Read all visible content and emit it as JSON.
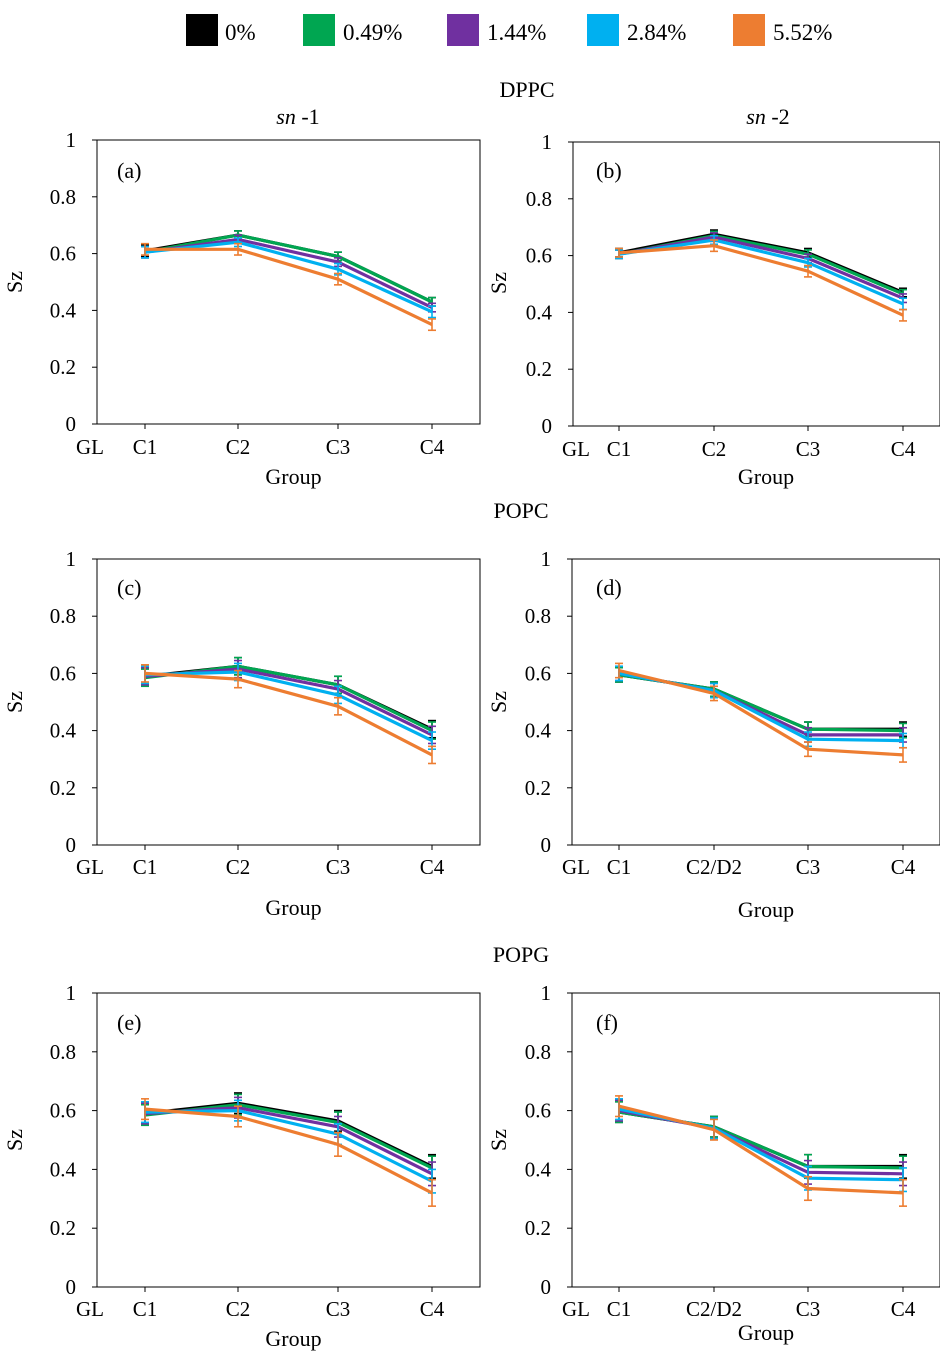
{
  "legend": [
    {
      "label": "0%",
      "color": "#000000"
    },
    {
      "label": "0.49%",
      "color": "#00a651"
    },
    {
      "label": "1.44%",
      "color": "#7030a0"
    },
    {
      "label": "2.84%",
      "color": "#00b0f0"
    },
    {
      "label": "5.52%",
      "color": "#ed7d31"
    }
  ],
  "sections": [
    "DPPC",
    "POPC",
    "POPG"
  ],
  "columns": [
    "sn-1",
    "sn-2"
  ],
  "chart_data": [
    {
      "type": "line",
      "label": "(a)",
      "section": "DPPC",
      "column": "sn-1",
      "categories": [
        "C1",
        "C2",
        "C3",
        "C4"
      ],
      "extra_tick": "GL",
      "ylabel": "Sz",
      "xlabel": "Group",
      "ylim": [
        0,
        1
      ],
      "yticks": [
        "0",
        "0.2",
        "0.4",
        "0.6",
        "0.8",
        "1"
      ],
      "series": [
        {
          "name": "0%",
          "values": [
            0.61,
            0.665,
            0.59,
            0.43
          ],
          "error": [
            0.02,
            0.015,
            0.015,
            0.015
          ]
        },
        {
          "name": "0.49%",
          "values": [
            0.605,
            0.665,
            0.59,
            0.43
          ],
          "error": [
            0.02,
            0.015,
            0.015,
            0.015
          ]
        },
        {
          "name": "1.44%",
          "values": [
            0.605,
            0.65,
            0.57,
            0.41
          ],
          "error": [
            0.02,
            0.015,
            0.015,
            0.015
          ]
        },
        {
          "name": "2.84%",
          "values": [
            0.605,
            0.64,
            0.545,
            0.395
          ],
          "error": [
            0.02,
            0.015,
            0.02,
            0.02
          ]
        },
        {
          "name": "5.52%",
          "values": [
            0.615,
            0.615,
            0.51,
            0.35
          ],
          "error": [
            0.02,
            0.02,
            0.02,
            0.02
          ]
        }
      ]
    },
    {
      "type": "line",
      "label": "(b)",
      "section": "DPPC",
      "column": "sn-2",
      "categories": [
        "C1",
        "C2",
        "C3",
        "C4"
      ],
      "extra_tick": "GL",
      "ylabel": "Sz",
      "xlabel": "Group",
      "ylim": [
        0,
        1
      ],
      "yticks": [
        "0",
        "0.2",
        "0.4",
        "0.6",
        "0.8",
        "1"
      ],
      "series": [
        {
          "name": "0%",
          "values": [
            0.61,
            0.675,
            0.61,
            0.47
          ],
          "error": [
            0.015,
            0.015,
            0.015,
            0.015
          ]
        },
        {
          "name": "0.49%",
          "values": [
            0.605,
            0.67,
            0.605,
            0.465
          ],
          "error": [
            0.015,
            0.015,
            0.015,
            0.015
          ]
        },
        {
          "name": "1.44%",
          "values": [
            0.605,
            0.665,
            0.59,
            0.45
          ],
          "error": [
            0.015,
            0.015,
            0.015,
            0.015
          ]
        },
        {
          "name": "2.84%",
          "values": [
            0.605,
            0.655,
            0.575,
            0.43
          ],
          "error": [
            0.015,
            0.015,
            0.015,
            0.02
          ]
        },
        {
          "name": "5.52%",
          "values": [
            0.61,
            0.635,
            0.545,
            0.39
          ],
          "error": [
            0.015,
            0.02,
            0.02,
            0.02
          ]
        }
      ]
    },
    {
      "type": "line",
      "label": "(c)",
      "section": "POPC",
      "column": "sn-1",
      "categories": [
        "C1",
        "C2",
        "C3",
        "C4"
      ],
      "extra_tick": "GL",
      "ylabel": "Sz",
      "xlabel": "Group",
      "ylim": [
        0,
        1
      ],
      "yticks": [
        "0",
        "0.2",
        "0.4",
        "0.6",
        "0.8",
        "1"
      ],
      "series": [
        {
          "name": "0%",
          "values": [
            0.59,
            0.625,
            0.56,
            0.405
          ],
          "error": [
            0.03,
            0.03,
            0.03,
            0.03
          ]
        },
        {
          "name": "0.49%",
          "values": [
            0.585,
            0.625,
            0.56,
            0.4
          ],
          "error": [
            0.03,
            0.03,
            0.03,
            0.03
          ]
        },
        {
          "name": "1.44%",
          "values": [
            0.59,
            0.615,
            0.545,
            0.385
          ],
          "error": [
            0.03,
            0.03,
            0.03,
            0.03
          ]
        },
        {
          "name": "2.84%",
          "values": [
            0.595,
            0.605,
            0.525,
            0.365
          ],
          "error": [
            0.03,
            0.03,
            0.03,
            0.03
          ]
        },
        {
          "name": "5.52%",
          "values": [
            0.6,
            0.58,
            0.485,
            0.315
          ],
          "error": [
            0.03,
            0.03,
            0.03,
            0.03
          ]
        }
      ]
    },
    {
      "type": "line",
      "label": "(d)",
      "section": "POPC",
      "column": "sn-2",
      "categories": [
        "C1",
        "C2/D2",
        "C3",
        "C4"
      ],
      "extra_tick": "GL",
      "ylabel": "Sz",
      "xlabel": "Group",
      "ylim": [
        0,
        1
      ],
      "yticks": [
        "0",
        "0.2",
        "0.4",
        "0.6",
        "0.8",
        "1"
      ],
      "series": [
        {
          "name": "0%",
          "values": [
            0.595,
            0.545,
            0.405,
            0.405
          ],
          "error": [
            0.025,
            0.025,
            0.025,
            0.025
          ]
        },
        {
          "name": "0.49%",
          "values": [
            0.595,
            0.545,
            0.405,
            0.4
          ],
          "error": [
            0.025,
            0.025,
            0.025,
            0.025
          ]
        },
        {
          "name": "1.44%",
          "values": [
            0.6,
            0.54,
            0.385,
            0.385
          ],
          "error": [
            0.025,
            0.025,
            0.025,
            0.025
          ]
        },
        {
          "name": "2.84%",
          "values": [
            0.6,
            0.54,
            0.37,
            0.365
          ],
          "error": [
            0.025,
            0.025,
            0.025,
            0.025
          ]
        },
        {
          "name": "5.52%",
          "values": [
            0.61,
            0.53,
            0.335,
            0.315
          ],
          "error": [
            0.025,
            0.025,
            0.025,
            0.025
          ]
        }
      ]
    },
    {
      "type": "line",
      "label": "(e)",
      "section": "POPG",
      "column": "sn-1",
      "categories": [
        "C1",
        "C2",
        "C3",
        "C4"
      ],
      "extra_tick": "GL",
      "ylabel": "Sz",
      "xlabel": "Group",
      "ylim": [
        0,
        1
      ],
      "yticks": [
        "0",
        "0.2",
        "0.4",
        "0.6",
        "0.8",
        "1"
      ],
      "series": [
        {
          "name": "0%",
          "values": [
            0.59,
            0.625,
            0.565,
            0.41
          ],
          "error": [
            0.035,
            0.035,
            0.035,
            0.04
          ]
        },
        {
          "name": "0.49%",
          "values": [
            0.585,
            0.62,
            0.56,
            0.405
          ],
          "error": [
            0.035,
            0.035,
            0.035,
            0.04
          ]
        },
        {
          "name": "1.44%",
          "values": [
            0.59,
            0.61,
            0.545,
            0.385
          ],
          "error": [
            0.035,
            0.035,
            0.035,
            0.04
          ]
        },
        {
          "name": "2.84%",
          "values": [
            0.595,
            0.6,
            0.52,
            0.36
          ],
          "error": [
            0.035,
            0.035,
            0.035,
            0.04
          ]
        },
        {
          "name": "5.52%",
          "values": [
            0.605,
            0.58,
            0.485,
            0.32
          ],
          "error": [
            0.035,
            0.035,
            0.04,
            0.045
          ]
        }
      ]
    },
    {
      "type": "line",
      "label": "(f)",
      "section": "POPG",
      "column": "sn-2",
      "categories": [
        "C1",
        "C2/D2",
        "C3",
        "C4"
      ],
      "extra_tick": "GL",
      "ylabel": "Sz",
      "xlabel": "Group",
      "ylim": [
        0,
        1
      ],
      "yticks": [
        "0",
        "0.2",
        "0.4",
        "0.6",
        "0.8",
        "1"
      ],
      "series": [
        {
          "name": "0%",
          "values": [
            0.595,
            0.545,
            0.41,
            0.41
          ],
          "error": [
            0.035,
            0.035,
            0.04,
            0.04
          ]
        },
        {
          "name": "0.49%",
          "values": [
            0.595,
            0.545,
            0.41,
            0.405
          ],
          "error": [
            0.035,
            0.035,
            0.04,
            0.04
          ]
        },
        {
          "name": "1.44%",
          "values": [
            0.6,
            0.54,
            0.39,
            0.385
          ],
          "error": [
            0.035,
            0.035,
            0.04,
            0.04
          ]
        },
        {
          "name": "2.84%",
          "values": [
            0.605,
            0.54,
            0.37,
            0.365
          ],
          "error": [
            0.035,
            0.035,
            0.04,
            0.04
          ]
        },
        {
          "name": "5.52%",
          "values": [
            0.615,
            0.535,
            0.335,
            0.32
          ],
          "error": [
            0.035,
            0.035,
            0.04,
            0.045
          ]
        }
      ]
    }
  ]
}
